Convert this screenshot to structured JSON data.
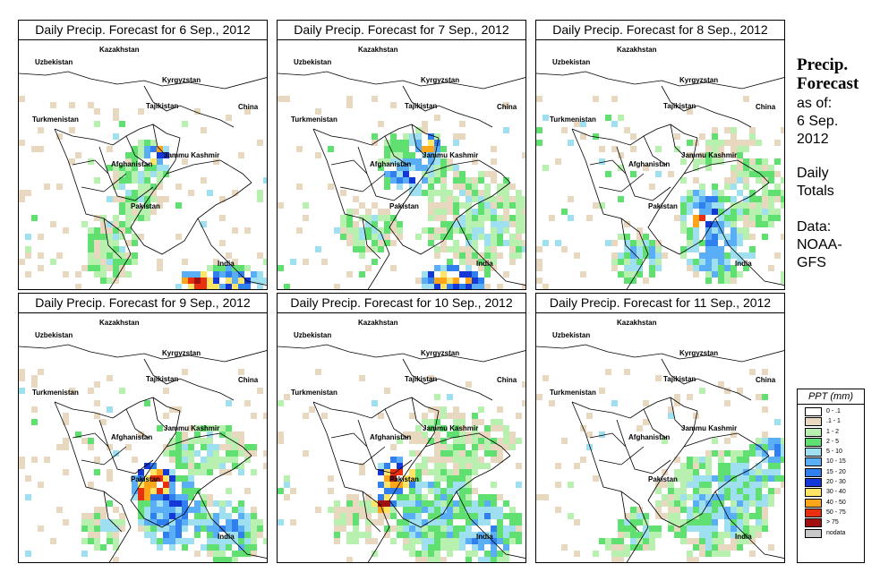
{
  "panels": [
    {
      "title": "Daily Precip. Forecast for  6 Sep., 2012"
    },
    {
      "title": "Daily Precip. Forecast for  7 Sep., 2012"
    },
    {
      "title": "Daily Precip. Forecast for  8 Sep., 2012"
    },
    {
      "title": "Daily Precip. Forecast for  9 Sep., 2012"
    },
    {
      "title": "Daily Precip. Forecast for  10 Sep., 2012"
    },
    {
      "title": "Daily Precip. Forecast for  11 Sep., 2012"
    }
  ],
  "places": {
    "uzbekistan": "Uzbekistan",
    "kazakhstan": "Kazakhstan",
    "kyrgyzstan": "Kyrgyzstan",
    "tajikistan": "Tajikistan",
    "china": "China",
    "turkmenistan": "Turkmenistan",
    "afghanistan": "Afghanistan",
    "jammu": "Jammu Kashmir",
    "pakistan": "Pakistan",
    "india": "India"
  },
  "side": {
    "title_line1": "Precip.",
    "title_line2": "Forecast",
    "asof": "as of:",
    "date_line1": "6 Sep.",
    "date_line2": "2012",
    "daily1": "Daily",
    "daily2": "Totals",
    "data1": "Data:",
    "data2": "NOAA-",
    "data3": "GFS"
  },
  "legend": {
    "title": "PPT (mm)",
    "items": [
      {
        "label": "0 - .1",
        "color": "#ffffff"
      },
      {
        "label": ".1 - 1",
        "color": "#e8d8bf"
      },
      {
        "label": "1 - 2",
        "color": "#b8f0b0"
      },
      {
        "label": "2 - 5",
        "color": "#5fe070"
      },
      {
        "label": "5 - 10",
        "color": "#9ee0f0"
      },
      {
        "label": "10 - 15",
        "color": "#5aaef5"
      },
      {
        "label": "15 - 20",
        "color": "#2f7fef"
      },
      {
        "label": "20 - 30",
        "color": "#1438d8"
      },
      {
        "label": "30 - 40",
        "color": "#ffe566"
      },
      {
        "label": "40 - 50",
        "color": "#ffa51a"
      },
      {
        "label": "50 - 75",
        "color": "#e83010"
      },
      {
        "label": "> 75",
        "color": "#a01010"
      },
      {
        "label": "nodata",
        "color": "#c8c8c8"
      }
    ]
  }
}
